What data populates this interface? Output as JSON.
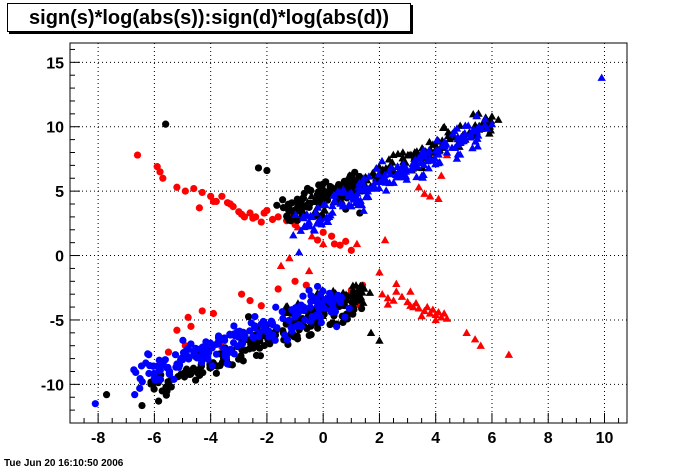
{
  "chart_data": {
    "type": "scatter",
    "title": "sign(s)*log(abs(s)):sign(d)*log(abs(d))",
    "xlabel": "",
    "ylabel": "",
    "xlim": [
      -9,
      10.8
    ],
    "ylim": [
      -13,
      16.5
    ],
    "xticks": [
      -8,
      -6,
      -4,
      -2,
      0,
      2,
      4,
      6,
      8,
      10
    ],
    "yticks": [
      -10,
      -5,
      0,
      5,
      10,
      15
    ],
    "grid": true,
    "legend": "none",
    "series": [
      {
        "color": "#000000",
        "marker": "circle",
        "clusters": [
          {
            "kind": "band",
            "x0": -6.2,
            "y0": -10.2,
            "x1": 1.4,
            "y1": -3.5,
            "spread": 0.6,
            "n": 170
          },
          {
            "kind": "band",
            "x0": -1.4,
            "y0": 3.4,
            "x1": 1.4,
            "y1": 5.8,
            "spread": 0.45,
            "n": 90
          }
        ],
        "points": [
          [
            -5.6,
            10.2
          ],
          [
            -7.7,
            -10.8
          ],
          [
            -5.4,
            -10.2
          ],
          [
            -2.3,
            6.8
          ],
          [
            -2.0,
            6.6
          ],
          [
            1.3,
            3.3
          ],
          [
            0.8,
            3.6
          ]
        ]
      },
      {
        "color": "#000000",
        "marker": "triangle",
        "clusters": [
          {
            "kind": "band",
            "x0": -1.0,
            "y0": 3.3,
            "x1": 6.0,
            "y1": 10.5,
            "spread": 0.45,
            "n": 170
          },
          {
            "kind": "band",
            "x0": -1.4,
            "y0": -4.4,
            "x1": 1.4,
            "y1": -2.8,
            "spread": 0.45,
            "n": 70
          }
        ],
        "points": [
          [
            6.0,
            10.8
          ],
          [
            5.8,
            10.4
          ],
          [
            2.0,
            -6.6
          ],
          [
            1.7,
            -6.0
          ]
        ]
      },
      {
        "color": "#0000ff",
        "marker": "circle",
        "clusters": [
          {
            "kind": "band",
            "x0": -6.6,
            "y0": -9.4,
            "x1": 0.6,
            "y1": -3.4,
            "spread": 0.6,
            "n": 200
          }
        ],
        "points": [
          [
            -8.1,
            -11.5
          ],
          [
            -6.7,
            -10.8
          ],
          [
            -6.0,
            -9.5
          ],
          [
            -5.7,
            -8.2
          ],
          [
            -6.2,
            -7.7
          ],
          [
            -0.2,
            -2.4
          ],
          [
            -0.5,
            -2.7
          ]
        ]
      },
      {
        "color": "#0000ff",
        "marker": "triangle",
        "clusters": [
          {
            "kind": "band",
            "x0": -0.8,
            "y0": 2.2,
            "x1": 5.8,
            "y1": 10.2,
            "spread": 0.55,
            "n": 200
          }
        ],
        "points": [
          [
            9.9,
            13.8
          ],
          [
            6.0,
            10.2
          ],
          [
            4.4,
            8.0
          ]
        ]
      },
      {
        "color": "#ff0000",
        "marker": "circle",
        "points": [
          [
            -6.6,
            7.8
          ],
          [
            -5.9,
            6.9
          ],
          [
            -5.8,
            6.5
          ],
          [
            -5.7,
            6.0
          ],
          [
            -5.2,
            5.3
          ],
          [
            -4.9,
            5.0
          ],
          [
            -4.6,
            5.2
          ],
          [
            -4.3,
            4.9
          ],
          [
            -4.0,
            4.6
          ],
          [
            -3.8,
            4.2
          ],
          [
            -3.6,
            4.6
          ],
          [
            -3.4,
            4.1
          ],
          [
            -3.2,
            3.8
          ],
          [
            -3.0,
            3.4
          ],
          [
            -2.8,
            3.0
          ],
          [
            -2.6,
            3.3
          ],
          [
            -2.4,
            3.0
          ],
          [
            -2.2,
            2.6
          ],
          [
            -2.0,
            3.5
          ],
          [
            -1.8,
            2.8
          ],
          [
            -3.9,
            4.2
          ],
          [
            -3.3,
            4.0
          ],
          [
            -2.9,
            3.2
          ],
          [
            -2.5,
            2.9
          ],
          [
            -4.4,
            3.7
          ],
          [
            -2.1,
            3.3
          ],
          [
            -1.6,
            3.0
          ],
          [
            -1.3,
            2.7
          ],
          [
            -1.0,
            2.4
          ],
          [
            0.0,
            1.8
          ],
          [
            0.3,
            1.5
          ],
          [
            0.6,
            0.8
          ],
          [
            1.0,
            0.4
          ],
          [
            0.8,
            1.1
          ],
          [
            -0.2,
            1.2
          ],
          [
            0.4,
            0.9
          ],
          [
            -2.9,
            -3.0
          ],
          [
            -2.6,
            -3.5
          ],
          [
            -2.2,
            -3.9
          ],
          [
            -4.7,
            -5.5
          ],
          [
            -5.2,
            -5.8
          ],
          [
            -4.8,
            -4.8
          ],
          [
            -4.3,
            -4.3
          ],
          [
            -3.9,
            -4.5
          ],
          [
            -5.5,
            -7.5
          ],
          [
            -3.6,
            -7.1
          ],
          [
            -4.9,
            -7.0
          ],
          [
            -1.6,
            -2.6
          ],
          [
            -1.0,
            -2.0
          ],
          [
            1.4,
            -2.3
          ],
          [
            1.0,
            -2.7
          ],
          [
            0.9,
            -3.1
          ],
          [
            1.3,
            -3.4
          ],
          [
            1.2,
            -3.8
          ],
          [
            0.8,
            -3.5
          ],
          [
            -0.6,
            -2.3
          ]
        ]
      },
      {
        "color": "#ff0000",
        "marker": "triangle",
        "points": [
          [
            -1.2,
            3.0
          ],
          [
            -0.9,
            2.2
          ],
          [
            -0.4,
            1.5
          ],
          [
            0.0,
            0.9
          ],
          [
            -1.2,
            -0.2
          ],
          [
            -1.5,
            -0.8
          ],
          [
            -0.5,
            -1.2
          ],
          [
            1.2,
            0.9
          ],
          [
            2.2,
            1.2
          ],
          [
            3.4,
            5.3
          ],
          [
            3.6,
            4.8
          ],
          [
            3.8,
            4.6
          ],
          [
            4.1,
            4.4
          ],
          [
            4.2,
            6.2
          ],
          [
            4.4,
            7.8
          ],
          [
            2.0,
            -1.3
          ],
          [
            2.1,
            -3.0
          ],
          [
            2.3,
            -3.3
          ],
          [
            2.5,
            -3.5
          ],
          [
            2.6,
            -2.8
          ],
          [
            2.8,
            -3.2
          ],
          [
            3.0,
            -3.6
          ],
          [
            3.1,
            -3.9
          ],
          [
            3.2,
            -4.0
          ],
          [
            3.3,
            -3.7
          ],
          [
            3.4,
            -4.1
          ],
          [
            3.6,
            -4.3
          ],
          [
            3.7,
            -4.0
          ],
          [
            3.8,
            -4.5
          ],
          [
            3.9,
            -4.2
          ],
          [
            4.0,
            -4.6
          ],
          [
            4.1,
            -4.4
          ],
          [
            4.2,
            -4.8
          ],
          [
            4.3,
            -4.5
          ],
          [
            4.4,
            -4.9
          ],
          [
            3.5,
            -4.7
          ],
          [
            3.1,
            -2.8
          ],
          [
            2.6,
            -2.2
          ],
          [
            2.3,
            -3.8
          ],
          [
            5.1,
            -6.0
          ],
          [
            5.4,
            -6.5
          ],
          [
            5.6,
            -7.0
          ],
          [
            6.6,
            -7.7
          ],
          [
            4.0,
            -5.0
          ]
        ]
      }
    ]
  },
  "footer": {
    "timestamp": "Tue Jun 20 16:10:50 2006"
  }
}
